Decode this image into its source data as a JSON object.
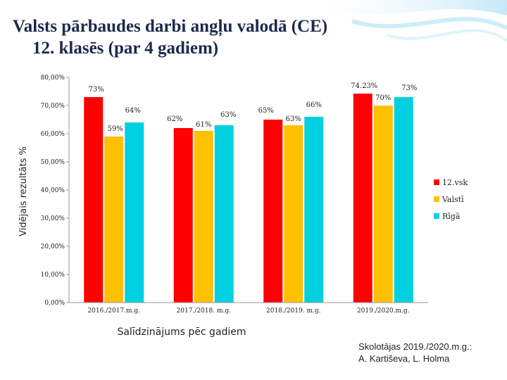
{
  "title": {
    "line1": "Valsts pārbaudes darbi  angļu valodā (CE)",
    "line2": "12. klasēs (par 4 gadiem)"
  },
  "credit": {
    "line1": "Skolotājas 2019./2020.m.g.:",
    "line2": "A. Kartiševa, L. Holma"
  },
  "chart_data": {
    "type": "bar",
    "title": "",
    "xlabel": "Salīdzinājums pēc gadiem",
    "ylabel": "Vidējais rezultāts %",
    "ylim": [
      0,
      80
    ],
    "yticks": [
      0,
      10,
      20,
      30,
      40,
      50,
      60,
      70,
      80
    ],
    "ytick_labels": [
      "0,00%",
      "10,00%",
      "20,00%",
      "30,00%",
      "40,00%",
      "50,00%",
      "60,00%",
      "70,00%",
      "80,00%"
    ],
    "categories": [
      "2016./2017.m.g.",
      "2017./2018. m.g.",
      "2018./2019. m.g.",
      "2019./2020.m.g."
    ],
    "legend_position": "right",
    "series": [
      {
        "name": "12.vsk",
        "color": "#ff0000",
        "values": [
          73,
          62,
          65,
          74.23
        ],
        "labels": [
          "73%",
          "62%",
          "65%",
          "74.23%"
        ]
      },
      {
        "name": "Valstī",
        "color": "#ffc000",
        "values": [
          59,
          61,
          63,
          70
        ],
        "labels": [
          "59%",
          "61%",
          "63%",
          "70%"
        ]
      },
      {
        "name": "Rīgā",
        "color": "#00d0e0",
        "values": [
          64,
          63,
          66,
          73
        ],
        "labels": [
          "64%",
          "63%",
          "66%",
          "73%"
        ]
      }
    ]
  }
}
